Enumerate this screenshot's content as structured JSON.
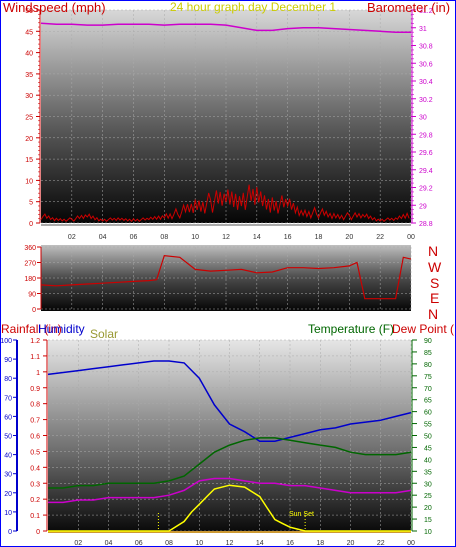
{
  "colors": {
    "windspeed": "#cc0000",
    "gust_green": "#008800",
    "barometer": "#cc00cc",
    "direction": "#cc0000",
    "rainfall": "#cc0000",
    "humidity": "#0000cc",
    "solar": "#999933",
    "temperature": "#006600",
    "dewpoint": "#cc0000",
    "solar_line": "#ffff00",
    "title_color": "#cccc00",
    "border": "#0000ff"
  },
  "header": {
    "left": "Windspeed (mph)",
    "center": "24 hour graph day  December 1",
    "right": "Barometer (in)"
  },
  "dir_labels": [
    "N",
    "W",
    "S",
    "E",
    "N"
  ],
  "bottom_labels": {
    "rainfall": "Rainfall (in)",
    "humidity": "Humidity",
    "solar": "Solar",
    "temperature": "Temperature (F)",
    "dewpoint": "Dew Point ("
  },
  "sunset_label": "Sun Set",
  "chart_data": [
    {
      "type": "line",
      "name": "wind-barometer",
      "x_ticks": [
        "02",
        "04",
        "06",
        "08",
        "10",
        "12",
        "14",
        "16",
        "18",
        "20",
        "22",
        "00"
      ],
      "left_axis": {
        "title": "Windspeed (mph)",
        "ylim": [
          0,
          50
        ],
        "ticks": [
          0,
          5,
          10,
          15,
          20,
          25,
          30,
          35,
          40,
          45,
          50
        ]
      },
      "right_axis": {
        "title": "Barometer (in)",
        "ylim": [
          28.8,
          31.2
        ],
        "ticks": [
          "28.8",
          "29",
          "29.2",
          "29.4",
          "29.6",
          "29.8",
          "30",
          "30.2",
          "30.4",
          "30.6",
          "30.8",
          "31",
          "31.2"
        ]
      },
      "series": [
        {
          "name": "Windspeed",
          "x": [
            0,
            1,
            2,
            3,
            4,
            5,
            6,
            7,
            8,
            9,
            10,
            11,
            12,
            13,
            14,
            15,
            16,
            17,
            18,
            19,
            20,
            21,
            22,
            23,
            24
          ],
          "values": [
            2,
            1,
            1,
            2,
            1,
            1,
            1,
            1,
            2,
            3,
            5,
            6,
            7,
            8,
            7,
            6,
            5,
            3,
            3,
            2,
            2,
            2,
            1,
            1,
            3
          ]
        },
        {
          "name": "Barometer",
          "x": [
            0,
            1,
            2,
            3,
            4,
            5,
            6,
            7,
            8,
            9,
            10,
            11,
            12,
            13,
            14,
            15,
            16,
            17,
            18,
            19,
            20,
            21,
            22,
            23,
            24
          ],
          "values": [
            31.05,
            31.04,
            31.04,
            31.03,
            31.03,
            31.04,
            31.04,
            31.04,
            31.03,
            31.04,
            31.04,
            31.04,
            31.03,
            31.0,
            30.97,
            30.97,
            30.99,
            31.0,
            31.0,
            30.99,
            30.98,
            30.97,
            30.96,
            30.95,
            30.95
          ]
        }
      ]
    },
    {
      "type": "line",
      "name": "wind-direction",
      "x_ticks": [
        "02",
        "04",
        "06",
        "08",
        "10",
        "12",
        "14",
        "16",
        "18",
        "20",
        "22",
        "00"
      ],
      "left_axis": {
        "ylim": [
          0,
          360
        ],
        "ticks": [
          0,
          90,
          180,
          270,
          360
        ]
      },
      "series": [
        {
          "name": "Direction",
          "x": [
            0,
            1,
            2,
            3,
            4,
            5,
            6,
            7,
            7.5,
            8,
            9,
            10,
            11,
            12,
            13,
            14,
            15,
            16,
            17,
            18,
            19,
            20,
            20.5,
            21,
            22,
            23,
            23.5,
            24
          ],
          "values": [
            140,
            135,
            140,
            145,
            150,
            155,
            160,
            165,
            170,
            310,
            300,
            230,
            220,
            225,
            230,
            210,
            215,
            240,
            240,
            235,
            240,
            250,
            270,
            60,
            60,
            60,
            300,
            290
          ]
        }
      ]
    },
    {
      "type": "line",
      "name": "rain-humidity-temperature",
      "x_ticks": [
        "02",
        "04",
        "06",
        "08",
        "10",
        "12",
        "14",
        "16",
        "18",
        "20",
        "22",
        "00"
      ],
      "rain_axis": {
        "title": "Rainfall (in)",
        "ylim": [
          0,
          1.2
        ],
        "ticks": [
          "0",
          "0.1",
          "0.2",
          "0.3",
          "0.4",
          "0.5",
          "0.6",
          "0.7",
          "0.8",
          "0.9",
          "1",
          "1.1",
          "1.2"
        ]
      },
      "humidity_axis": {
        "title": "Humidity",
        "ylim": [
          0,
          100
        ],
        "ticks": [
          0,
          10,
          20,
          30,
          40,
          50,
          60,
          70,
          80,
          90,
          100
        ]
      },
      "temp_axis": {
        "title": "Temperature (F)",
        "ylim": [
          10,
          90
        ],
        "ticks": [
          10,
          15,
          20,
          25,
          30,
          35,
          40,
          45,
          50,
          55,
          60,
          65,
          70,
          75,
          80,
          85,
          90
        ]
      },
      "series": [
        {
          "name": "Humidity",
          "x": [
            0,
            1,
            2,
            3,
            4,
            5,
            6,
            7,
            8,
            9,
            10,
            11,
            12,
            13,
            14,
            15,
            16,
            17,
            18,
            19,
            20,
            21,
            22,
            23,
            24
          ],
          "values": [
            82,
            83,
            84,
            85,
            86,
            87,
            88,
            89,
            89,
            88,
            80,
            66,
            56,
            52,
            47,
            47,
            49,
            51,
            53,
            54,
            56,
            57,
            58,
            60,
            62
          ]
        },
        {
          "name": "Temperature",
          "x": [
            0,
            1,
            2,
            3,
            4,
            5,
            6,
            7,
            8,
            9,
            10,
            11,
            12,
            13,
            14,
            15,
            16,
            17,
            18,
            19,
            20,
            21,
            22,
            23,
            24
          ],
          "values": [
            28,
            28,
            29,
            29,
            30,
            30,
            30,
            30,
            31,
            33,
            38,
            43,
            46,
            48,
            49,
            49,
            48,
            47,
            46,
            45,
            43,
            42,
            42,
            42,
            43
          ]
        },
        {
          "name": "Dew Point",
          "x": [
            0,
            1,
            2,
            3,
            4,
            5,
            6,
            7,
            8,
            9,
            10,
            11,
            12,
            13,
            14,
            15,
            16,
            17,
            18,
            19,
            20,
            21,
            22,
            23,
            24
          ],
          "values": [
            22,
            22,
            23,
            23,
            24,
            24,
            24,
            24,
            25,
            27,
            31,
            32,
            32,
            31,
            30,
            30,
            29,
            29,
            28,
            27,
            26,
            26,
            26,
            26,
            27
          ]
        },
        {
          "name": "Solar",
          "x": [
            0,
            6,
            7,
            8,
            9,
            9.5,
            10,
            10.5,
            11,
            12,
            13,
            14,
            14.5,
            15,
            15.5,
            16,
            16.5,
            17,
            24
          ],
          "values": [
            0,
            0,
            0,
            0,
            5,
            10,
            14,
            18,
            22,
            24,
            23,
            18,
            12,
            6,
            4,
            2,
            1,
            0,
            0
          ]
        }
      ]
    }
  ]
}
